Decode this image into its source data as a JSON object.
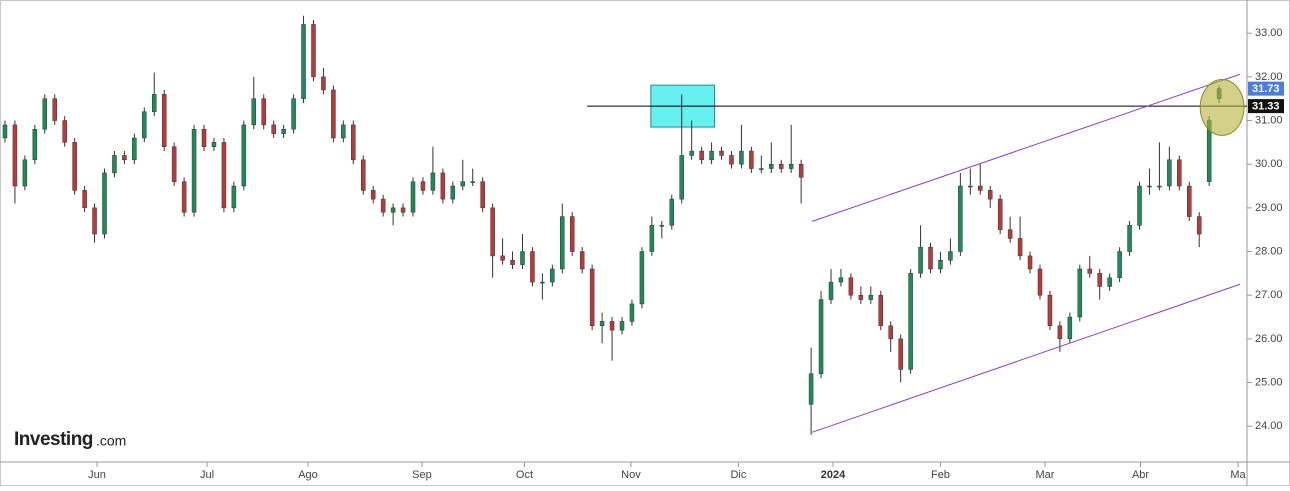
{
  "chart_data": {
    "type": "candlestick",
    "logo": {
      "brand": "Investing",
      "suffix": ".com"
    },
    "xlim": [
      -0.5,
      124.6
    ],
    "xticks": [
      {
        "value": 9.25,
        "label": "Jun"
      },
      {
        "value": 20.3,
        "label": "Jul"
      },
      {
        "value": 30.45,
        "label": "Ago"
      },
      {
        "value": 41.9,
        "label": "Sep"
      },
      {
        "value": 52.2,
        "label": "Oct"
      },
      {
        "value": 62.9,
        "label": "Nov"
      },
      {
        "value": 73.7,
        "label": "Dic"
      },
      {
        "value": 83.2,
        "label": "2024"
      },
      {
        "value": 94.0,
        "label": "Feb"
      },
      {
        "value": 104.5,
        "label": "Mar"
      },
      {
        "value": 114.1,
        "label": "Abr"
      },
      {
        "value": 123.9,
        "label": "Ma"
      }
    ],
    "ylim": [
      23.18,
      33.76
    ],
    "yticks": [
      {
        "value": 24,
        "label": "24.00"
      },
      {
        "value": 25,
        "label": "25.00"
      },
      {
        "value": 26,
        "label": "26.00"
      },
      {
        "value": 27,
        "label": "27.00"
      },
      {
        "value": 28,
        "label": "28.00"
      },
      {
        "value": 29,
        "label": "29.00"
      },
      {
        "value": 30,
        "label": "30.00"
      },
      {
        "value": 31,
        "label": "31.00"
      },
      {
        "value": 32,
        "label": "32.00"
      },
      {
        "value": 33,
        "label": "33.00"
      }
    ],
    "up_color": "#1f8a5a",
    "down_color": "#b73b3b",
    "ohlc": [
      [
        30.6,
        31.0,
        30.5,
        30.9
      ],
      [
        30.9,
        31.0,
        29.1,
        29.5
      ],
      [
        29.5,
        30.2,
        29.4,
        30.1
      ],
      [
        30.1,
        30.9,
        30.0,
        30.8
      ],
      [
        30.8,
        31.6,
        30.7,
        31.5
      ],
      [
        31.5,
        31.6,
        30.9,
        31.0
      ],
      [
        31.0,
        31.1,
        30.4,
        30.5
      ],
      [
        30.5,
        30.6,
        29.3,
        29.4
      ],
      [
        29.4,
        29.5,
        28.9,
        29.0
      ],
      [
        29.0,
        29.1,
        28.2,
        28.4
      ],
      [
        28.4,
        29.9,
        28.3,
        29.8
      ],
      [
        29.8,
        30.3,
        29.7,
        30.2
      ],
      [
        30.2,
        30.3,
        30.0,
        30.1
      ],
      [
        30.1,
        30.7,
        30.0,
        30.6
      ],
      [
        30.6,
        31.3,
        30.5,
        31.2
      ],
      [
        31.2,
        32.1,
        31.1,
        31.6
      ],
      [
        31.6,
        31.7,
        30.3,
        30.4
      ],
      [
        30.4,
        30.5,
        29.5,
        29.6
      ],
      [
        29.6,
        29.7,
        28.8,
        28.9
      ],
      [
        28.9,
        30.9,
        28.8,
        30.8
      ],
      [
        30.8,
        30.9,
        30.3,
        30.4
      ],
      [
        30.4,
        30.6,
        30.3,
        30.5
      ],
      [
        30.5,
        30.6,
        28.9,
        29.0
      ],
      [
        29.0,
        29.6,
        28.9,
        29.5
      ],
      [
        29.5,
        31.0,
        29.4,
        30.9
      ],
      [
        30.9,
        32.0,
        30.8,
        31.5
      ],
      [
        31.5,
        31.6,
        30.8,
        30.9
      ],
      [
        30.9,
        31.0,
        30.6,
        30.7
      ],
      [
        30.7,
        30.9,
        30.6,
        30.8
      ],
      [
        30.8,
        31.6,
        30.7,
        31.5
      ],
      [
        31.5,
        33.4,
        31.4,
        33.2
      ],
      [
        33.2,
        33.3,
        31.9,
        32.0
      ],
      [
        32.0,
        32.2,
        31.6,
        31.7
      ],
      [
        31.7,
        31.8,
        30.5,
        30.6
      ],
      [
        30.6,
        31.0,
        30.5,
        30.9
      ],
      [
        30.9,
        31.0,
        30.0,
        30.1
      ],
      [
        30.1,
        30.2,
        29.3,
        29.4
      ],
      [
        29.4,
        29.5,
        29.1,
        29.2
      ],
      [
        29.2,
        29.3,
        28.8,
        28.9
      ],
      [
        28.9,
        29.1,
        28.6,
        29.0
      ],
      [
        29.0,
        29.1,
        28.8,
        28.9
      ],
      [
        28.9,
        29.7,
        28.8,
        29.6
      ],
      [
        29.6,
        29.7,
        29.3,
        29.4
      ],
      [
        29.4,
        30.4,
        29.3,
        29.8
      ],
      [
        29.8,
        29.9,
        29.1,
        29.2
      ],
      [
        29.2,
        29.6,
        29.1,
        29.5
      ],
      [
        29.5,
        30.1,
        29.4,
        29.6
      ],
      [
        29.6,
        29.9,
        29.5,
        29.6
      ],
      [
        29.6,
        29.7,
        28.9,
        29.0
      ],
      [
        29.0,
        29.1,
        27.4,
        27.9
      ],
      [
        27.9,
        28.3,
        27.7,
        27.8
      ],
      [
        27.8,
        28.0,
        27.6,
        27.7
      ],
      [
        27.7,
        28.4,
        27.6,
        28.0
      ],
      [
        28.0,
        28.1,
        27.2,
        27.3
      ],
      [
        27.3,
        27.5,
        26.9,
        27.3
      ],
      [
        27.3,
        27.7,
        27.2,
        27.6
      ],
      [
        27.6,
        29.1,
        27.5,
        28.8
      ],
      [
        28.8,
        28.9,
        27.9,
        28.0
      ],
      [
        28.0,
        28.1,
        27.5,
        27.6
      ],
      [
        27.6,
        27.7,
        26.2,
        26.3
      ],
      [
        26.3,
        26.6,
        25.9,
        26.4
      ],
      [
        26.4,
        26.5,
        25.5,
        26.2
      ],
      [
        26.2,
        26.5,
        26.1,
        26.4
      ],
      [
        26.4,
        26.9,
        26.3,
        26.8
      ],
      [
        26.8,
        28.1,
        26.7,
        28.0
      ],
      [
        28.0,
        28.8,
        27.9,
        28.6
      ],
      [
        28.6,
        28.7,
        28.3,
        28.6
      ],
      [
        28.6,
        29.3,
        28.5,
        29.2
      ],
      [
        29.2,
        31.6,
        29.1,
        30.2
      ],
      [
        30.2,
        31.0,
        30.1,
        30.3
      ],
      [
        30.3,
        30.4,
        30.0,
        30.1
      ],
      [
        30.1,
        30.5,
        30.0,
        30.3
      ],
      [
        30.3,
        30.4,
        30.1,
        30.2
      ],
      [
        30.2,
        30.3,
        29.9,
        30.0
      ],
      [
        30.0,
        30.9,
        29.9,
        30.3
      ],
      [
        30.3,
        30.4,
        29.8,
        29.9
      ],
      [
        29.9,
        30.2,
        29.8,
        29.9
      ],
      [
        29.9,
        30.5,
        29.8,
        30.0
      ],
      [
        30.0,
        30.1,
        29.8,
        29.9
      ],
      [
        29.9,
        30.9,
        29.8,
        30.0
      ],
      [
        30.0,
        30.1,
        29.1,
        29.7
      ],
      [
        24.5,
        25.8,
        23.8,
        25.2
      ],
      [
        25.2,
        27.1,
        25.1,
        26.9
      ],
      [
        26.9,
        27.6,
        26.8,
        27.3
      ],
      [
        27.3,
        27.6,
        27.2,
        27.4
      ],
      [
        27.4,
        27.5,
        26.9,
        27.0
      ],
      [
        27.0,
        27.2,
        26.8,
        26.9
      ],
      [
        26.9,
        27.2,
        26.8,
        27.0
      ],
      [
        27.0,
        27.1,
        26.2,
        26.3
      ],
      [
        26.3,
        26.4,
        25.7,
        26.0
      ],
      [
        26.0,
        26.1,
        25.0,
        25.3
      ],
      [
        25.3,
        27.6,
        25.2,
        27.5
      ],
      [
        27.5,
        28.6,
        27.4,
        28.1
      ],
      [
        28.1,
        28.2,
        27.5,
        27.6
      ],
      [
        27.6,
        28.0,
        27.5,
        27.8
      ],
      [
        27.8,
        28.3,
        27.7,
        28.0
      ],
      [
        28.0,
        29.8,
        27.9,
        29.5
      ],
      [
        29.5,
        29.9,
        29.3,
        29.5
      ],
      [
        29.5,
        30.0,
        29.3,
        29.4
      ],
      [
        29.4,
        29.5,
        29.0,
        29.2
      ],
      [
        29.2,
        29.3,
        28.4,
        28.5
      ],
      [
        28.5,
        28.8,
        28.2,
        28.3
      ],
      [
        28.3,
        28.8,
        27.8,
        27.9
      ],
      [
        27.9,
        28.0,
        27.5,
        27.6
      ],
      [
        27.6,
        27.7,
        26.9,
        27.0
      ],
      [
        27.0,
        27.1,
        26.2,
        26.3
      ],
      [
        26.3,
        26.4,
        25.7,
        26.0
      ],
      [
        26.0,
        26.6,
        25.9,
        26.5
      ],
      [
        26.5,
        27.7,
        26.4,
        27.6
      ],
      [
        27.6,
        27.9,
        27.4,
        27.5
      ],
      [
        27.5,
        27.6,
        26.9,
        27.2
      ],
      [
        27.2,
        27.5,
        27.1,
        27.4
      ],
      [
        27.4,
        28.1,
        27.3,
        28.0
      ],
      [
        28.0,
        28.7,
        27.9,
        28.6
      ],
      [
        28.6,
        29.6,
        28.5,
        29.5
      ],
      [
        29.5,
        29.9,
        29.3,
        29.5
      ],
      [
        29.5,
        30.5,
        29.4,
        29.5
      ],
      [
        29.5,
        30.4,
        29.4,
        30.1
      ],
      [
        30.1,
        30.2,
        29.4,
        29.5
      ],
      [
        29.5,
        29.6,
        28.7,
        28.8
      ],
      [
        28.8,
        28.9,
        28.1,
        28.4
      ],
      [
        29.6,
        31.1,
        29.5,
        31.0
      ],
      [
        31.5,
        31.8,
        31.4,
        31.73
      ]
    ],
    "hline": {
      "value": 31.33,
      "from": 58.5,
      "color": "#000000"
    },
    "box": {
      "x": [
        64.9,
        71.3
      ],
      "y": [
        30.85,
        31.81
      ],
      "color": "#66f0f0"
    },
    "channel": {
      "color": "#8a3fc7",
      "lines": [
        [
          [
            81.1,
            28.69
          ],
          [
            124.1,
            32.06
          ]
        ],
        [
          [
            81.1,
            23.86
          ],
          [
            124.1,
            27.25
          ]
        ]
      ]
    },
    "ellipse": {
      "center": [
        122.3,
        31.3
      ],
      "rx": 2.2,
      "ry": 0.64,
      "color": "#b5b13a"
    },
    "price_labels": [
      {
        "value": 31.73,
        "color": "#4a7fd8"
      },
      {
        "value": 31.33,
        "color": "#111111"
      }
    ]
  }
}
